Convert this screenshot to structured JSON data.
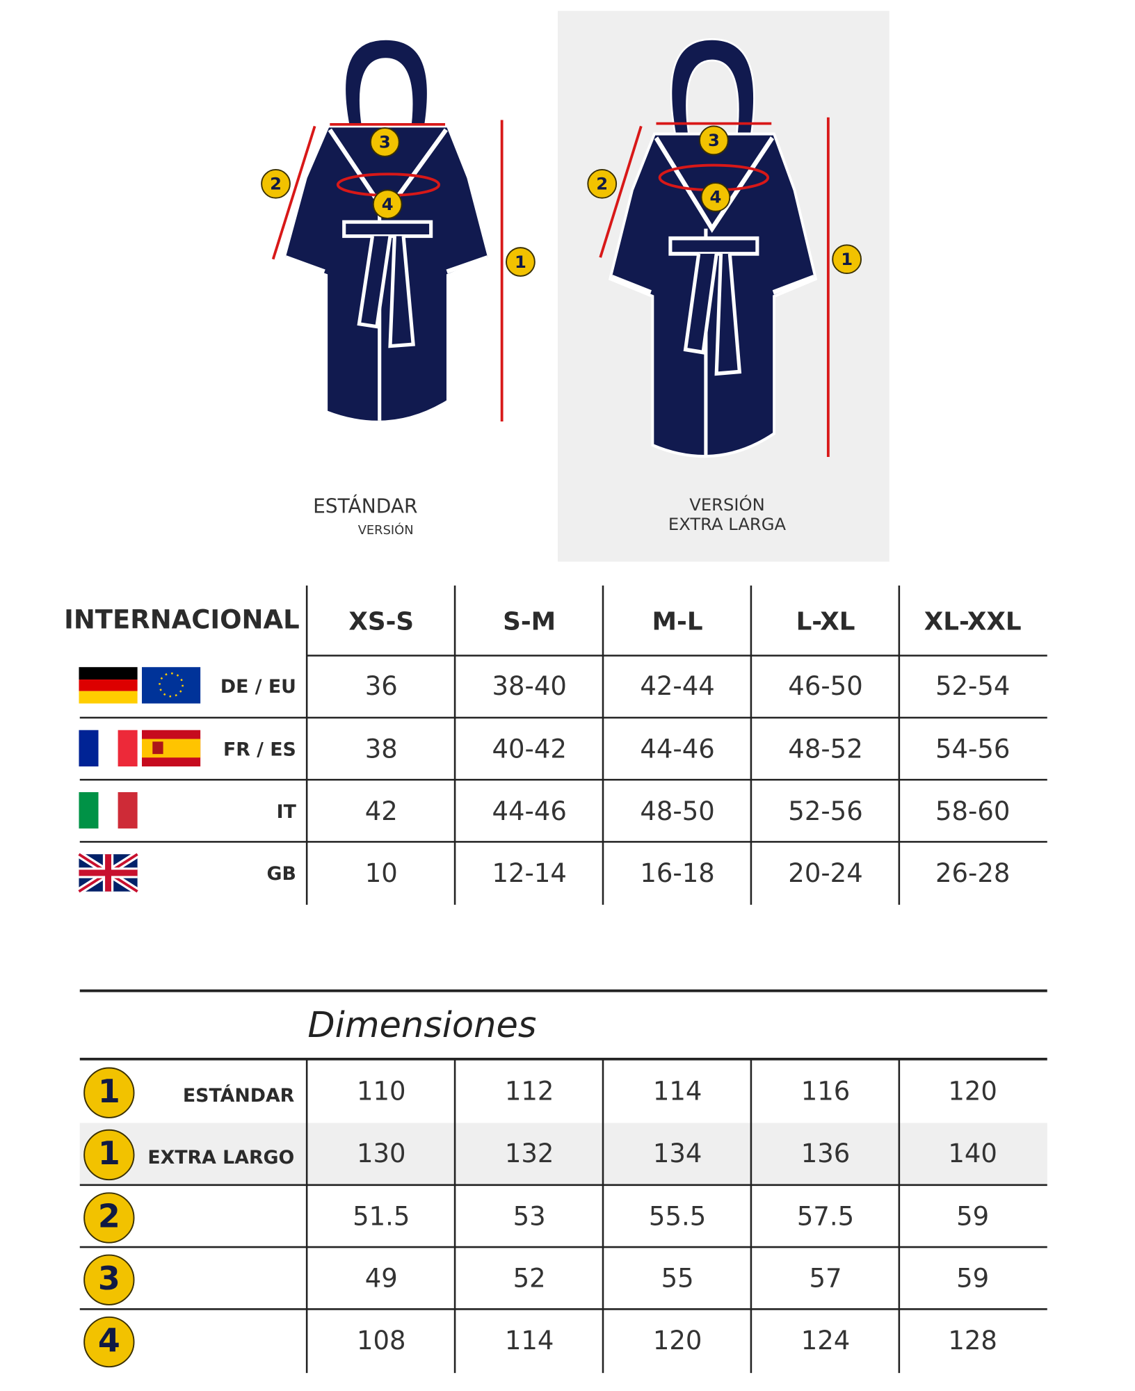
{
  "robes": [
    {
      "caption": [
        "ESTÁNDAR",
        "VERSIÓN"
      ],
      "markers": [
        "1",
        "2",
        "3",
        "4"
      ]
    },
    {
      "caption": [
        "VERSIÓN",
        "EXTRA LARGA"
      ],
      "markers": [
        "1",
        "2",
        "3",
        "4"
      ]
    }
  ],
  "sizes_table": {
    "header": "INTERNACIONAL",
    "columns": [
      "XS-S",
      "S-M",
      "M-L",
      "L-XL",
      "XL-XXL"
    ],
    "rows": [
      {
        "label": "DE / EU",
        "values": [
          "36",
          "38-40",
          "42-44",
          "46-50",
          "52-54"
        ]
      },
      {
        "label": "FR / ES",
        "values": [
          "38",
          "40-42",
          "44-46",
          "48-52",
          "54-56"
        ]
      },
      {
        "label": "IT",
        "values": [
          "42",
          "44-46",
          "48-50",
          "52-56",
          "58-60"
        ]
      },
      {
        "label": "GB",
        "values": [
          "10",
          "12-14",
          "16-18",
          "20-24",
          "26-28"
        ]
      }
    ]
  },
  "dimensions_table": {
    "title": "Dimensiones",
    "rows": [
      {
        "marker": "1",
        "label": "ESTÁNDAR",
        "values": [
          110,
          112,
          114,
          116,
          120
        ]
      },
      {
        "marker": "1",
        "label": "EXTRA LARGO",
        "values": [
          130,
          132,
          134,
          136,
          140
        ]
      },
      {
        "marker": "2",
        "values": [
          51.5,
          53,
          55.5,
          57.5,
          59
        ]
      },
      {
        "marker": "3",
        "values": [
          49,
          52,
          55,
          57,
          59
        ]
      },
      {
        "marker": "4",
        "values": [
          108,
          114,
          120,
          124,
          128
        ]
      }
    ]
  }
}
